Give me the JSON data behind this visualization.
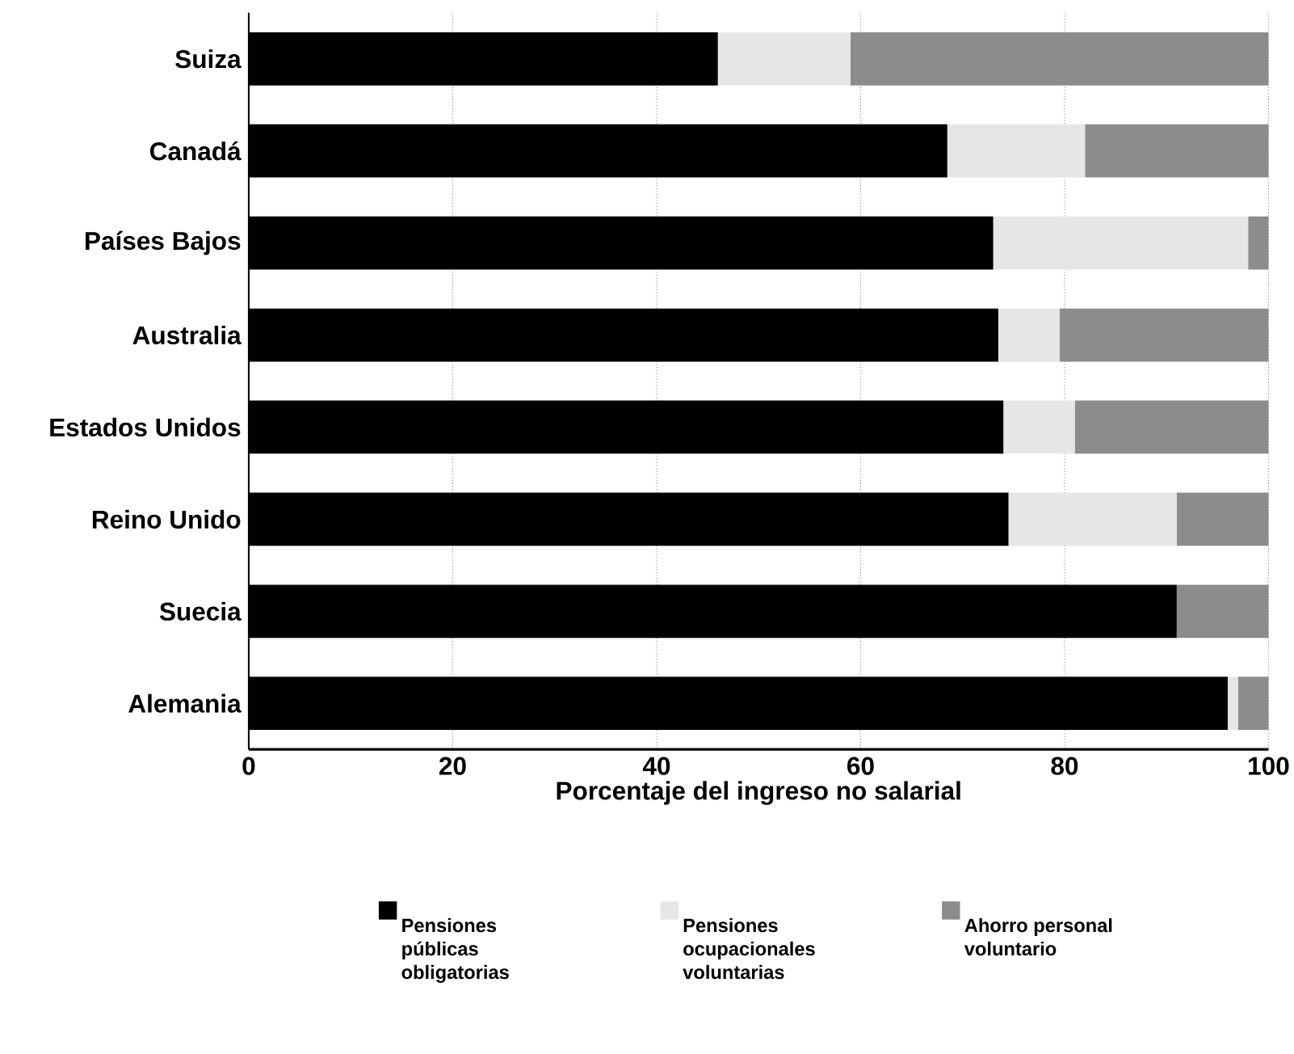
{
  "chart_data": {
    "type": "bar",
    "orientation": "horizontal",
    "stacked": true,
    "categories": [
      "Suiza",
      "Canadá",
      "Países Bajos",
      "Australia",
      "Estados Unidos",
      "Reino Unido",
      "Suecia",
      "Alemania"
    ],
    "series": [
      {
        "name": "Pensiones públicas obligatorias",
        "color": "#000000",
        "values": [
          46,
          68.5,
          73,
          73.5,
          74,
          74.5,
          91,
          96
        ]
      },
      {
        "name": "Pensiones ocupacionales voluntarias",
        "color": "#e6e6e6",
        "values": [
          13,
          13.5,
          25,
          6,
          7,
          16.5,
          0,
          1
        ]
      },
      {
        "name": "Ahorro personal voluntario",
        "color": "#8c8c8c",
        "values": [
          41,
          18,
          2,
          20.5,
          19,
          9,
          9,
          3
        ]
      }
    ],
    "xlabel": "Porcentaje del ingreso no salarial",
    "xlim": [
      0,
      100
    ],
    "xticks": [
      0,
      20,
      40,
      60,
      80,
      100
    ],
    "grid": "x",
    "legend": "bottom"
  }
}
